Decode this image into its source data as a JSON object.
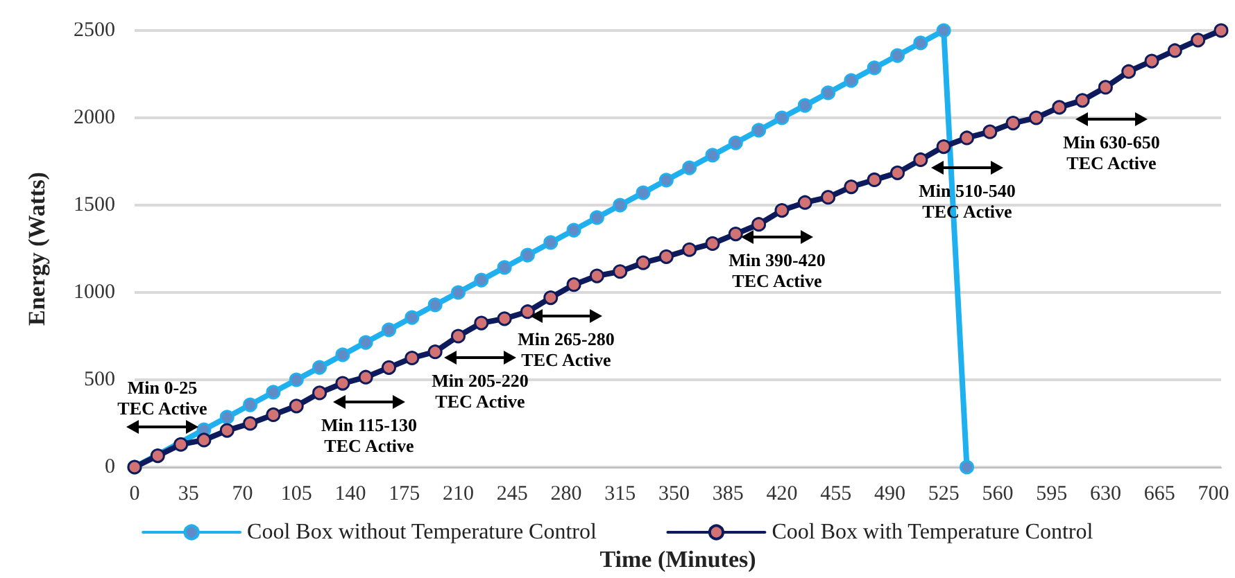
{
  "chart_data": {
    "type": "line",
    "xlabel": "Time (Minutes)",
    "ylabel": "Energy (Watts)",
    "xlim": [
      0,
      705
    ],
    "xticks": [
      0,
      35,
      70,
      105,
      140,
      175,
      210,
      245,
      280,
      315,
      350,
      385,
      420,
      455,
      490,
      525,
      560,
      595,
      630,
      665,
      700
    ],
    "ylim": [
      0,
      2500
    ],
    "yticks": [
      0,
      500,
      1000,
      1500,
      2000,
      2500
    ],
    "grid": "y",
    "legend": "bottom",
    "marker": "circle",
    "line_style": "solid",
    "series": [
      {
        "name": "Cool Box without Temperature Control",
        "color": "#1fb0f0",
        "x": [
          0,
          15,
          30,
          45,
          60,
          75,
          90,
          105,
          120,
          135,
          150,
          165,
          180,
          195,
          210,
          225,
          240,
          255,
          270,
          285,
          300,
          315,
          330,
          345,
          360,
          375,
          390,
          405,
          420,
          435,
          450,
          465,
          480,
          495,
          510,
          525,
          540
        ],
        "values": [
          0,
          null,
          null,
          214,
          286,
          357,
          429,
          500,
          571,
          643,
          714,
          786,
          857,
          929,
          1000,
          1071,
          1143,
          1214,
          1286,
          1357,
          1429,
          1500,
          1571,
          1643,
          1714,
          1786,
          1857,
          1929,
          2000,
          2071,
          2143,
          2214,
          2286,
          2357,
          2429,
          2500,
          0
        ]
      },
      {
        "name": "Cool Box with Temperature Control",
        "color": "#0d1a5c",
        "x": [
          0,
          15,
          30,
          45,
          60,
          75,
          90,
          105,
          120,
          135,
          150,
          165,
          180,
          195,
          210,
          225,
          240,
          255,
          270,
          285,
          300,
          315,
          330,
          345,
          360,
          375,
          390,
          405,
          420,
          435,
          450,
          465,
          480,
          495,
          510,
          525,
          540,
          555,
          570,
          585,
          600,
          615,
          630,
          645,
          660,
          675,
          690,
          705
        ],
        "values": [
          0,
          65,
          130,
          155,
          210,
          250,
          300,
          350,
          425,
          480,
          515,
          570,
          625,
          660,
          750,
          825,
          850,
          890,
          970,
          1045,
          1095,
          1120,
          1170,
          1205,
          1245,
          1280,
          1335,
          1390,
          1470,
          1515,
          1545,
          1605,
          1645,
          1685,
          1760,
          1835,
          1885,
          1920,
          1970,
          2000,
          2060,
          2100,
          2175,
          2265,
          2325,
          2385,
          2445,
          2500
        ]
      }
    ],
    "annotations": [
      "Min 0-25\nTEC Active",
      "Min 115-130\nTEC Active",
      "Min 205-220\nTEC Active",
      "Min 265-280\nTEC Active",
      "Min 390-420\nTEC Active",
      "Min 510-540\nTEC Active",
      "Min 630-650\nTEC Active"
    ]
  }
}
